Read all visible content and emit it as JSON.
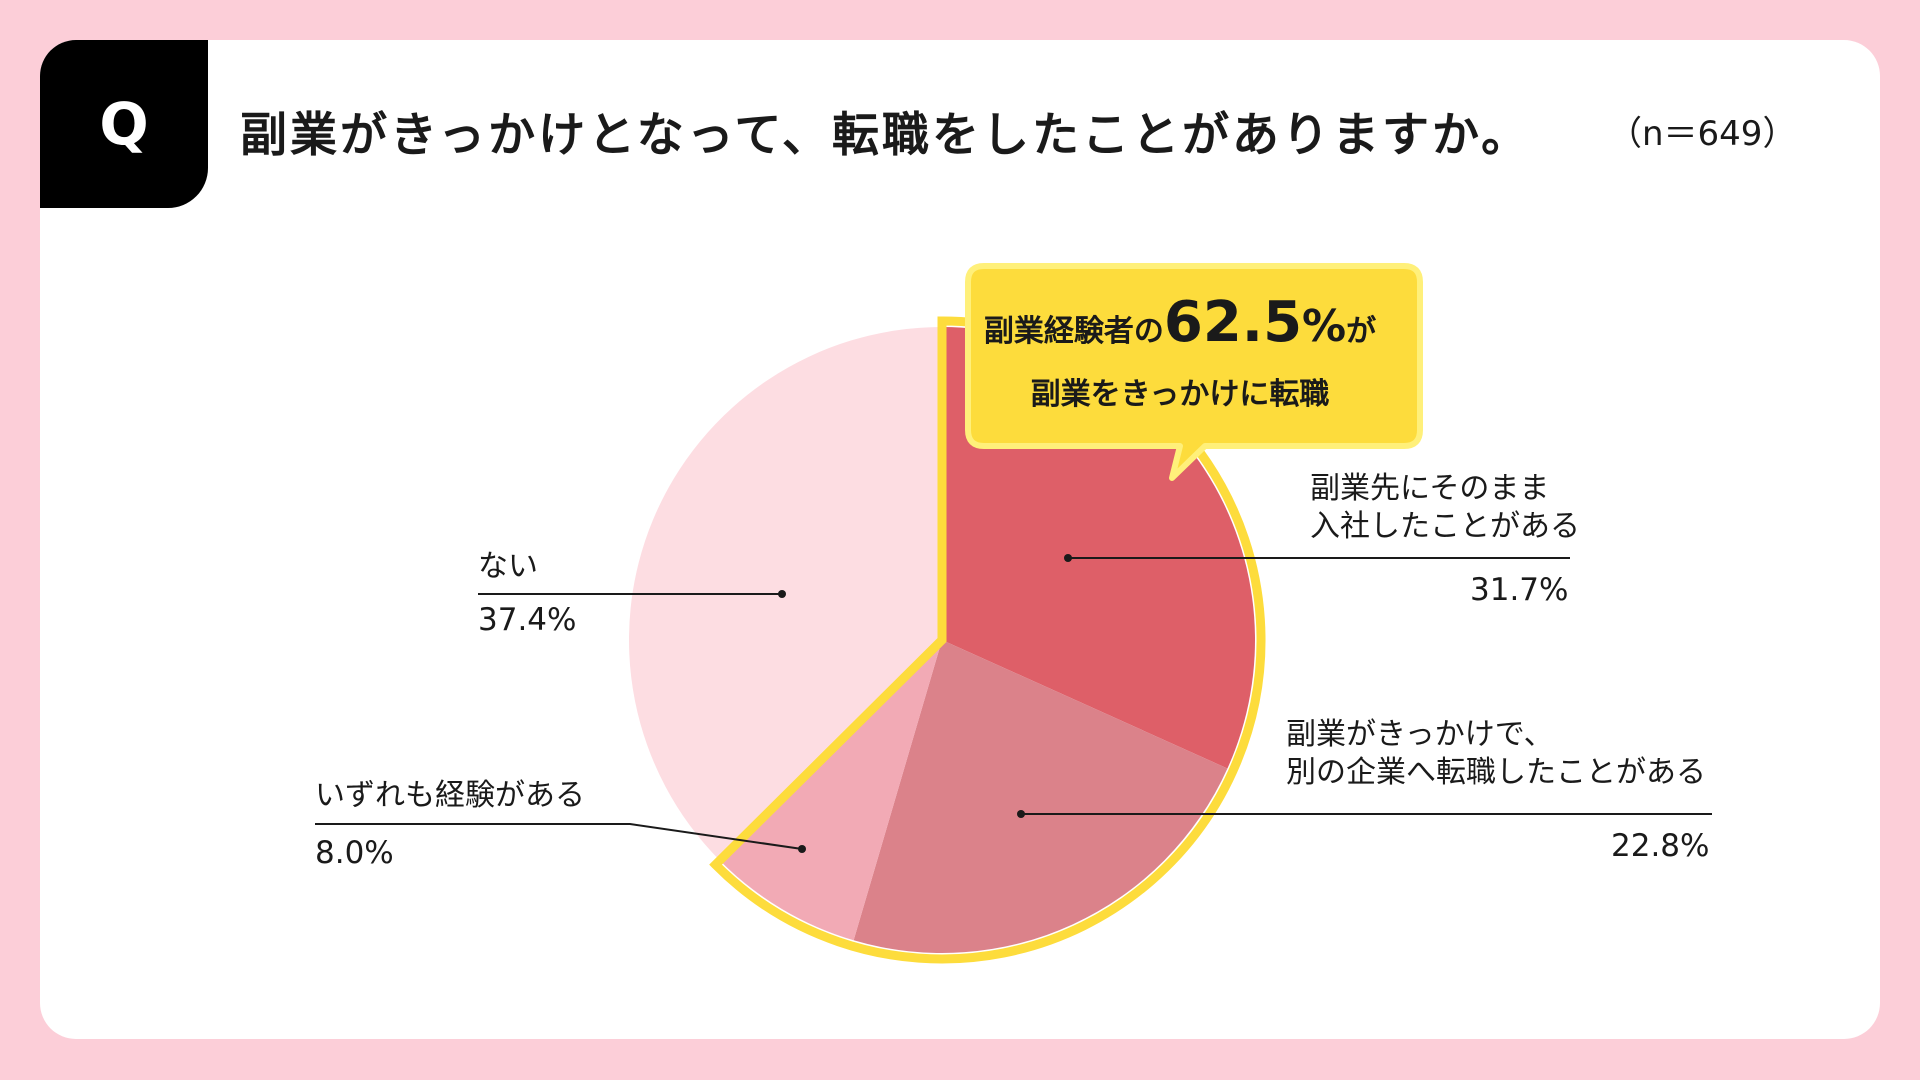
{
  "header": {
    "q_mark": "Q",
    "question": "副業がきっかけとなって、転職をしたことがありますか。",
    "sample": "（n＝649）"
  },
  "callout": {
    "prefix": "副業経験者の",
    "value": "62.5",
    "unit": "%",
    "suffix": "が",
    "line2": "副業をきっかけに転職"
  },
  "labels": {
    "s1_line1": "副業先にそのまま",
    "s1_line2": "入社したことがある",
    "s2_line1": "副業がきっかけで、",
    "s2_line2": "別の企業へ転職したことがある",
    "s3": "いずれも経験がある",
    "s4": "ない"
  },
  "colors": {
    "background": "#fcced8",
    "highlight": "#fddc3c",
    "slice1": "#de5f68",
    "slice2": "#db828a",
    "slice3": "#f2aab5",
    "slice4": "#fddde2"
  },
  "chart_data": {
    "type": "pie",
    "categories": [
      "副業先にそのまま入社したことがある",
      "副業がきっかけで、別の企業へ転職したことがある",
      "いずれも経験がある",
      "ない"
    ],
    "values": [
      31.7,
      22.8,
      8.0,
      37.4
    ],
    "value_labels": [
      "31.7%",
      "22.8%",
      "8.0%",
      "37.4%"
    ]
  }
}
